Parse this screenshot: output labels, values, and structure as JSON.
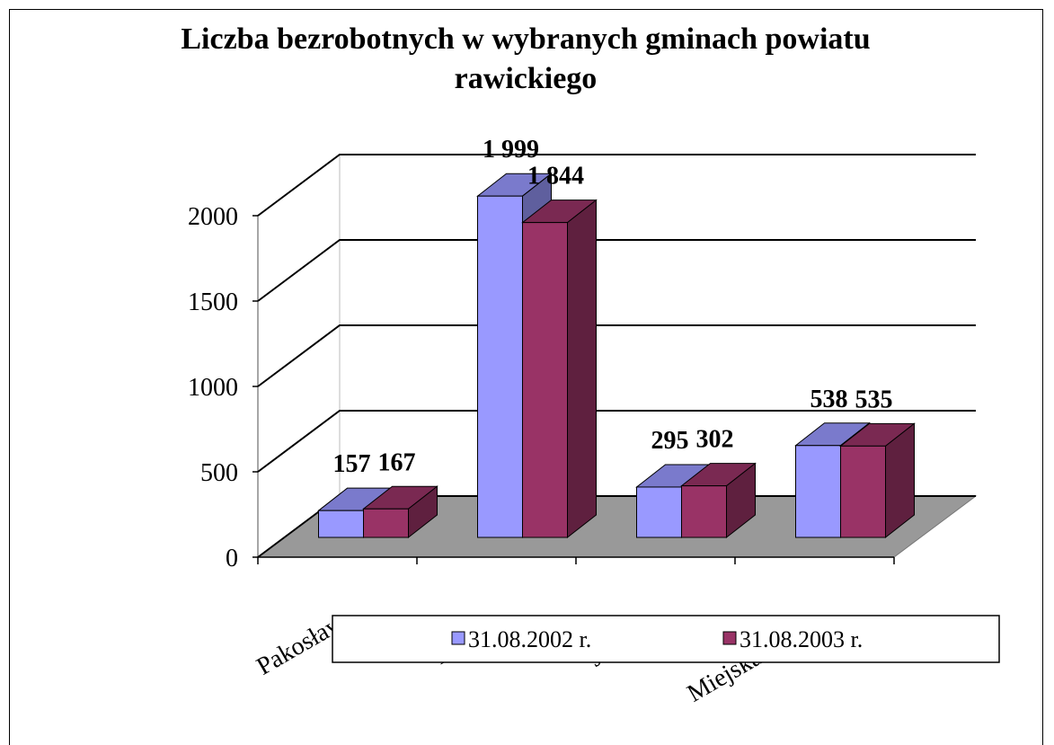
{
  "chart_data": {
    "type": "bar3d",
    "title": "Liczba bezrobotnych w wybranych gminach powiatu rawickiego",
    "categories": [
      "Pakosław",
      "Rawicz",
      "Jutrosin",
      "Miejska Górka"
    ],
    "series": [
      {
        "name": "31.08.2002 r.",
        "color": "#9999ff",
        "values": [
          157,
          1999,
          295,
          538
        ],
        "value_labels": [
          "157",
          "1 999",
          "295",
          "538"
        ]
      },
      {
        "name": "31.08.2003 r.",
        "color": "#993366",
        "values": [
          167,
          1844,
          302,
          535
        ],
        "value_labels": [
          "167",
          "1 844",
          "302",
          "535"
        ]
      }
    ],
    "ylim": [
      0,
      2000
    ],
    "yticks": [
      0,
      500,
      1000,
      1500,
      2000
    ],
    "grid": true
  }
}
